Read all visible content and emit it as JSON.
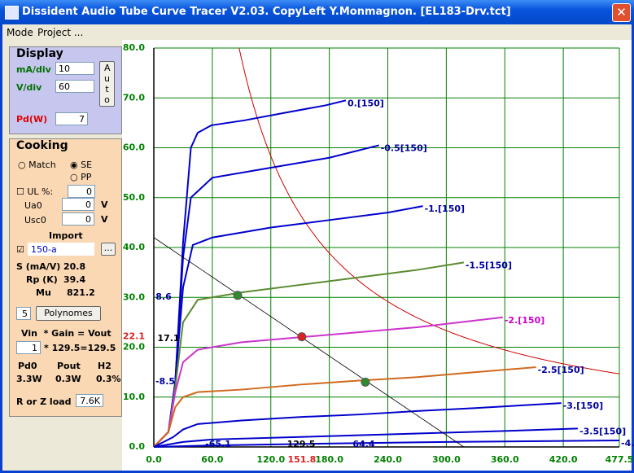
{
  "window": {
    "title": "Dissident Audio Tube Curve Tracer V2.03. CopyLeft Y.Monmagnon. [EL183-Drv.tct]"
  },
  "menu": [
    "Mode",
    "Project ..."
  ],
  "display": {
    "title": "Display",
    "ma_div_label": "mA/div",
    "ma_div": "10",
    "v_div_label": "V/div",
    "v_div": "60",
    "auto": "Auto",
    "pd_label": "Pd(W)",
    "pd": "7"
  },
  "cooking": {
    "title": "Cooking",
    "match": "Match",
    "se": "SE",
    "pp": "PP",
    "ul": "UL %:",
    "ul_value": "0",
    "ua0": "Ua0",
    "ua0_value": "0",
    "ua0_unit": "V",
    "usc0": "Usc0",
    "usc0_value": "0",
    "usc0_unit": "V",
    "import": "Import",
    "file": "150-a",
    "browse": "...",
    "s_label": "S (mA/V)",
    "s_value": "20.8",
    "rp_label": "Rp (K)",
    "rp_value": "39.4",
    "mu_label": "Mu",
    "mu_value": "821.2",
    "poly_order": "5",
    "polynomes": "Polynomes",
    "gain_header": "Vin  * Gain = Vout",
    "vin": "1",
    "gain_text": "* 129.5=129.5",
    "pd0_label": "Pd0",
    "pout_label": "Pout",
    "h2_label": "H2",
    "pd0": "3.3W",
    "pout": "0.3W",
    "h2": "0.3%",
    "load_label": "R or Z load",
    "load": "7.6K"
  },
  "chart_data": {
    "type": "line",
    "xlim": [
      0,
      477.5
    ],
    "ylim": [
      0,
      80
    ],
    "grid": true,
    "grid_color": "#008000",
    "xticks": [
      {
        "value": 0,
        "label": "0.0"
      },
      {
        "value": 60,
        "label": "60.0"
      },
      {
        "value": 120,
        "label": "120.0"
      },
      {
        "value": 180,
        "label": "180.0"
      },
      {
        "value": 240,
        "label": "240.0"
      },
      {
        "value": 300,
        "label": "300.0"
      },
      {
        "value": 360,
        "label": "360.0"
      },
      {
        "value": 420,
        "label": "420.0"
      },
      {
        "value": 477.5,
        "label": "477.5"
      }
    ],
    "yticks": [
      {
        "value": 0,
        "label": "0.0"
      },
      {
        "value": 10,
        "label": "10.0"
      },
      {
        "value": 20,
        "label": "20.0"
      },
      {
        "value": 30,
        "label": "30.0"
      },
      {
        "value": 40,
        "label": "40.0"
      },
      {
        "value": 50,
        "label": "50.0"
      },
      {
        "value": 60,
        "label": "60.0"
      },
      {
        "value": 70,
        "label": "70.0"
      },
      {
        "value": 80,
        "label": "80.0"
      }
    ],
    "series": [
      {
        "name": "0.[150]",
        "color": "#0000cc",
        "label_color": "#0000a0",
        "x": [
          0,
          15,
          22,
          30,
          38,
          45,
          59,
          93,
          134,
          176,
          197
        ],
        "values": [
          0,
          3,
          13,
          41,
          60,
          63,
          64.5,
          65.5,
          67,
          68.5,
          69.5
        ]
      },
      {
        "name": "-0.5[150]",
        "color": "#0000cc",
        "label_color": "#0000a0",
        "x": [
          0,
          15,
          22,
          30,
          38,
          60,
          120,
          180,
          231
        ],
        "values": [
          0,
          3,
          13,
          38,
          50,
          54,
          56,
          58,
          60.5
        ]
      },
      {
        "name": "-1.[150]",
        "color": "#0000cc",
        "label_color": "#0000a0",
        "x": [
          0,
          15,
          22,
          30,
          40,
          60,
          120,
          180,
          240,
          276
        ],
        "values": [
          0,
          3,
          13,
          32,
          40.5,
          42,
          44,
          45.5,
          47,
          48.3
        ]
      },
      {
        "name": "-1.5[150]",
        "color": "#5a8a30",
        "label_color": "#0000a0",
        "x": [
          0,
          15,
          22,
          30,
          45,
          90,
          150,
          210,
          270,
          318
        ],
        "values": [
          0,
          3,
          12,
          25,
          29.5,
          31,
          32.5,
          34,
          35.5,
          37
        ]
      },
      {
        "name": "-2.[150]",
        "color": "#cc33cc",
        "label_color": "#cc00cc",
        "x": [
          0,
          15,
          22,
          30,
          45,
          90,
          150,
          210,
          270,
          358
        ],
        "values": [
          0,
          3,
          11,
          17,
          19.5,
          21,
          22,
          23,
          24,
          26
        ]
      },
      {
        "name": "-2.5[150]",
        "color": "#d2691e",
        "label_color": "#0000a0",
        "x": [
          0,
          15,
          22,
          30,
          45,
          90,
          150,
          210,
          270,
          330,
          392
        ],
        "values": [
          0,
          3,
          8,
          10,
          11,
          11.5,
          12.5,
          13.3,
          14,
          15,
          16
        ]
      },
      {
        "name": "-3.[150]",
        "color": "#0000cc",
        "label_color": "#0000a0",
        "x": [
          0,
          20,
          30,
          45,
          90,
          150,
          210,
          270,
          330,
          418
        ],
        "values": [
          0,
          2,
          3.5,
          4.6,
          5.3,
          6,
          6.5,
          7.2,
          7.8,
          8.8
        ]
      },
      {
        "name": "-3.5[150]",
        "color": "#0000cc",
        "label_color": "#0000a0",
        "x": [
          0,
          30,
          60,
          150,
          270,
          360,
          435
        ],
        "values": [
          0,
          1,
          1.5,
          2,
          2.7,
          3.2,
          3.7
        ]
      },
      {
        "name": "-4.[150]",
        "color": "#0000cc",
        "label_color": "#0000a0",
        "x": [
          0,
          60,
          150,
          300,
          477.5
        ],
        "values": [
          0,
          0.3,
          0.6,
          1,
          1.3
        ]
      }
    ],
    "load_line": {
      "x": [
        0,
        318
      ],
      "values": [
        42,
        0
      ]
    },
    "operating_points": [
      {
        "x": 86,
        "y": 30.4,
        "color": "#2e8b2e"
      },
      {
        "x": 151.8,
        "y": 22.1,
        "color": "#e02020"
      },
      {
        "x": 217,
        "y": 13,
        "color": "#2e8b2e"
      }
    ],
    "annotations": [
      {
        "text": "17.1",
        "color": "#000000"
      },
      {
        "text": "8.6",
        "color": "#0000a0"
      },
      {
        "text": "-8.5",
        "color": "#0000a0"
      },
      {
        "text": "-65.1",
        "color": "#0000a0"
      },
      {
        "text": "129.5",
        "color": "#000000"
      },
      {
        "text": "64.4",
        "color": "#0000a0"
      }
    ]
  }
}
